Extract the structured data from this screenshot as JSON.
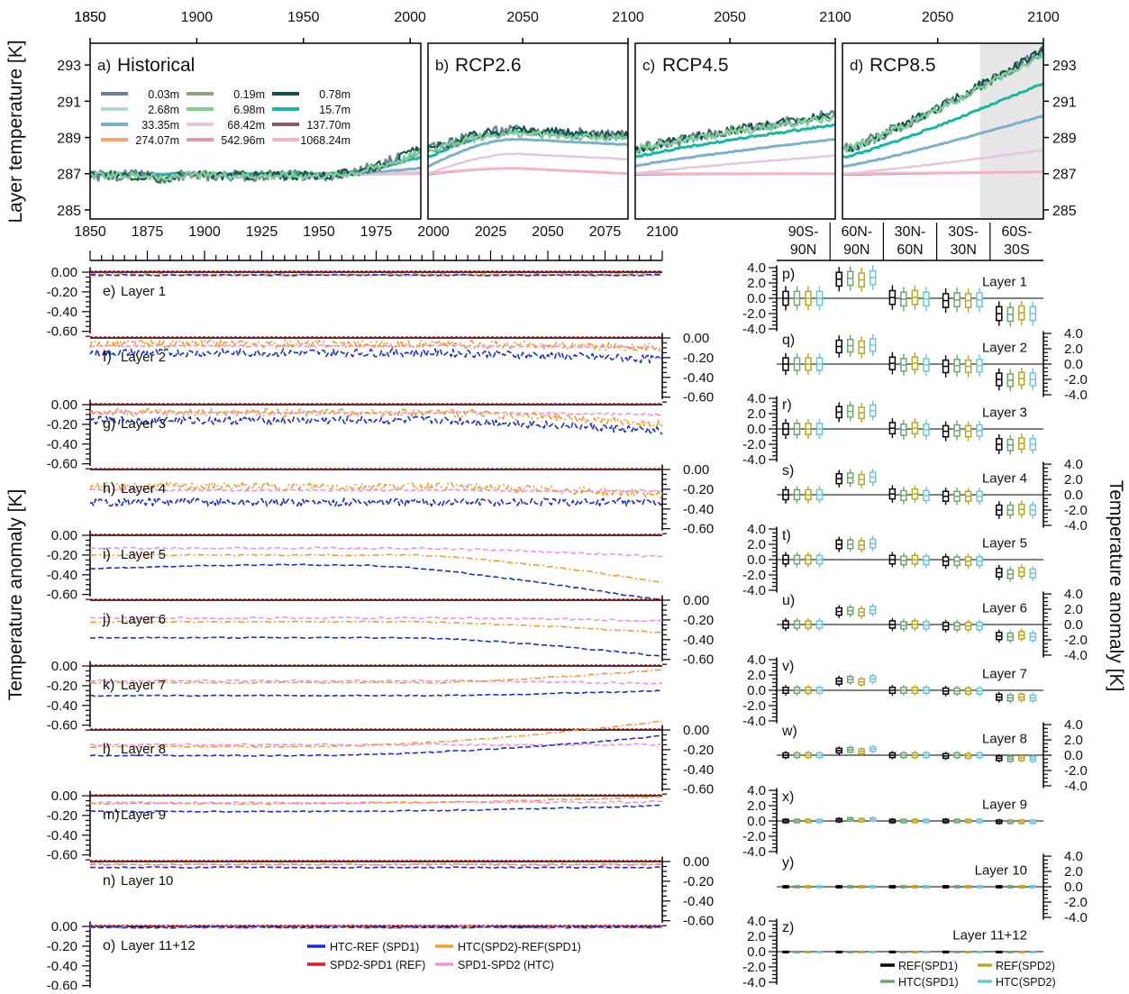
{
  "top_ylabel": "Layer temperature [K]",
  "bottom_ylabel": "Temperature anomaly [K]",
  "right_ylabel": "Temperature anomaly [K]",
  "top_yticks": [
    "285",
    "287",
    "289",
    "291",
    "293"
  ],
  "anom_ticks": [
    "0.00",
    "-0.20",
    "-0.40",
    "-0.60"
  ],
  "box_ticks": [
    "4.0",
    "2.0",
    "0.0",
    "-2.0",
    "-4.0"
  ],
  "chart_data": [
    {
      "type": "line",
      "panels": [
        {
          "label": "a)",
          "title": "Historical",
          "x_ticks": [
            1850,
            1900,
            1950,
            2000
          ],
          "xlim": [
            1850,
            2005
          ]
        },
        {
          "label": "b)",
          "title": "RCP2.6",
          "x_ticks": [
            2050,
            2100
          ],
          "xlim": [
            2005,
            2100
          ]
        },
        {
          "label": "c)",
          "title": "RCP4.5",
          "x_ticks": [
            2050,
            2100
          ],
          "xlim": [
            2005,
            2100
          ]
        },
        {
          "label": "d)",
          "title": "RCP8.5",
          "x_ticks": [
            2050,
            2100
          ],
          "xlim": [
            2005,
            2100
          ],
          "shaded": [
            2070,
            2100
          ]
        }
      ],
      "ylabel": "Layer temperature [K]",
      "ylim": [
        284.5,
        294.2
      ],
      "legend": [
        {
          "name": "0.03m",
          "color": "#6b8494"
        },
        {
          "name": "0.19m",
          "color": "#8f9e7e"
        },
        {
          "name": "0.78m",
          "color": "#0f5247"
        },
        {
          "name": "2.68m",
          "color": "#b4d8c6"
        },
        {
          "name": "6.98m",
          "color": "#7fce95"
        },
        {
          "name": "15.7m",
          "color": "#17b8a0"
        },
        {
          "name": "33.35m",
          "color": "#7ab2cc"
        },
        {
          "name": "68.42m",
          "color": "#e4c6e0"
        },
        {
          "name": "137.70m",
          "color": "#8a5a62"
        },
        {
          "name": "274.07m",
          "color": "#f7a070"
        },
        {
          "name": "542.96m",
          "color": "#e09aa8"
        },
        {
          "name": "1068.24m",
          "color": "#f5b3c0"
        }
      ],
      "end_values": {
        "Historical": {
          "surface": 288.4,
          "15.7m": 287.9,
          "33.35m": 287.3,
          "68.42m": 287.1,
          "deep": 287.0
        },
        "RCP2.6": {
          "surface": 289.1,
          "15.7m": 289.0,
          "33.35m": 288.6,
          "68.42m": 287.8,
          "deep": 287.0
        },
        "RCP4.5": {
          "surface": 290.3,
          "15.7m": 289.7,
          "33.35m": 288.9,
          "68.42m": 288.0,
          "deep": 287.0
        },
        "RCP8.5": {
          "surface": 293.8,
          "15.7m": 292.0,
          "33.35m": 290.2,
          "68.42m": 288.3,
          "deep": 287.1
        }
      }
    },
    {
      "type": "line",
      "x_ticks": [
        1850,
        1875,
        1900,
        1925,
        1950,
        1975,
        2000,
        2025,
        2050,
        2075,
        2100
      ],
      "xlim": [
        1850,
        2100
      ],
      "ylabel": "Temperature anomaly [K]",
      "ylim": [
        -0.65,
        0.05
      ],
      "legend": [
        {
          "name": "HTC-REF (SPD1)",
          "color": "#1a2ed8"
        },
        {
          "name": "HTC(SPD2)-REF(SPD1)",
          "color": "#f59a2c"
        },
        {
          "name": "SPD2-SPD1 (REF)",
          "color": "#e8141e"
        },
        {
          "name": "SPD1-SPD2 (HTC)",
          "color": "#f090e0"
        }
      ],
      "panels": [
        {
          "label": "e)",
          "layer": "Layer 1",
          "series": {
            "HTC-REF (SPD1)": [
              -0.03,
              -0.03
            ],
            "HTC(SPD2)-REF(SPD1)": [
              -0.02,
              -0.02
            ],
            "SPD2-SPD1 (REF)": [
              0.0,
              0.0
            ],
            "SPD1-SPD2 (HTC)": [
              -0.03,
              -0.03
            ]
          }
        },
        {
          "label": "f)",
          "layer": "Layer 2",
          "series": {
            "HTC-REF (SPD1)": [
              -0.15,
              -0.22
            ],
            "HTC(SPD2)-REF(SPD1)": [
              -0.06,
              -0.1
            ],
            "SPD2-SPD1 (REF)": [
              0.0,
              0.0
            ],
            "SPD1-SPD2 (HTC)": [
              -0.08,
              -0.1
            ]
          }
        },
        {
          "label": "g)",
          "layer": "Layer 3",
          "series": {
            "HTC-REF (SPD1)": [
              -0.16,
              -0.27
            ],
            "HTC(SPD2)-REF(SPD1)": [
              -0.08,
              -0.2
            ],
            "SPD2-SPD1 (REF)": [
              0.0,
              0.0
            ],
            "SPD1-SPD2 (HTC)": [
              -0.08,
              -0.1
            ]
          }
        },
        {
          "label": "h)",
          "layer": "Layer 4",
          "series": {
            "HTC-REF (SPD1)": [
              -0.33,
              -0.33
            ],
            "HTC(SPD2)-REF(SPD1)": [
              -0.17,
              -0.25
            ],
            "SPD2-SPD1 (REF)": [
              0.0,
              0.0
            ],
            "SPD1-SPD2 (HTC)": [
              -0.21,
              -0.22
            ]
          }
        },
        {
          "label": "i)",
          "layer": "Layer 5",
          "series": {
            "HTC-REF (SPD1)": [
              -0.34,
              -0.62
            ],
            "HTC(SPD2)-REF(SPD1)": [
              -0.2,
              -0.48
            ],
            "SPD2-SPD1 (REF)": [
              0.0,
              0.0
            ],
            "SPD1-SPD2 (HTC)": [
              -0.13,
              -0.22
            ]
          }
        },
        {
          "label": "j)",
          "layer": "Layer 6",
          "series": {
            "HTC-REF (SPD1)": [
              -0.38,
              -0.57
            ],
            "HTC(SPD2)-REF(SPD1)": [
              -0.22,
              -0.33
            ],
            "SPD2-SPD1 (REF)": [
              0.0,
              0.0
            ],
            "SPD1-SPD2 (HTC)": [
              -0.18,
              -0.21
            ]
          }
        },
        {
          "label": "k)",
          "layer": "Layer 7",
          "series": {
            "HTC-REF (SPD1)": [
              -0.3,
              -0.25
            ],
            "HTC(SPD2)-REF(SPD1)": [
              -0.17,
              -0.04
            ],
            "SPD2-SPD1 (REF)": [
              0.0,
              0.0
            ],
            "SPD1-SPD2 (HTC)": [
              -0.15,
              -0.18
            ]
          }
        },
        {
          "label": "l)",
          "layer": "Layer 8",
          "series": {
            "HTC-REF (SPD1)": [
              -0.26,
              -0.06
            ],
            "HTC(SPD2)-REF(SPD1)": [
              -0.17,
              0.09
            ],
            "SPD2-SPD1 (REF)": [
              0.0,
              0.0
            ],
            "SPD1-SPD2 (HTC)": [
              -0.15,
              -0.15
            ]
          }
        },
        {
          "label": "m)",
          "layer": "Layer 9",
          "series": {
            "HTC-REF (SPD1)": [
              -0.16,
              -0.1
            ],
            "HTC(SPD2)-REF(SPD1)": [
              -0.08,
              -0.01
            ],
            "SPD2-SPD1 (REF)": [
              0.0,
              0.0
            ],
            "SPD1-SPD2 (HTC)": [
              -0.07,
              -0.06
            ]
          }
        },
        {
          "label": "n)",
          "layer": "Layer 10",
          "series": {
            "HTC-REF (SPD1)": [
              -0.06,
              -0.06
            ],
            "HTC(SPD2)-REF(SPD1)": [
              -0.03,
              -0.03
            ],
            "SPD2-SPD1 (REF)": [
              0.0,
              0.0
            ],
            "SPD1-SPD2 (HTC)": [
              -0.03,
              -0.03
            ]
          }
        },
        {
          "label": "o)",
          "layer": "Layer 11+12",
          "series": {
            "HTC-REF (SPD1)": [
              -0.01,
              -0.01
            ],
            "HTC(SPD2)-REF(SPD1)": [
              -0.01,
              -0.01
            ],
            "SPD2-SPD1 (REF)": [
              0.0,
              0.0
            ],
            "SPD1-SPD2 (HTC)": [
              -0.01,
              -0.01
            ]
          }
        }
      ]
    },
    {
      "type": "box",
      "categories": [
        "90S-\n90N",
        "60N-\n90N",
        "30N-\n60N",
        "30S-\n30N",
        "60S-\n30S"
      ],
      "ylim": [
        -4.0,
        4.0
      ],
      "ylabel": "Temperature anomaly [K]",
      "legend": [
        {
          "name": "REF(SPD1)",
          "color": "#000000"
        },
        {
          "name": "REF(SPD2)",
          "color": "#b8a81a"
        },
        {
          "name": "HTC(SPD1)",
          "color": "#6aa870"
        },
        {
          "name": "HTC(SPD2)",
          "color": "#66c8d8"
        }
      ],
      "panels": [
        {
          "label": "p)",
          "layer": "Layer 1",
          "medians": [
            [
              0,
              0,
              0,
              0
            ],
            [
              2.5,
              2.6,
              2.4,
              2.7
            ],
            [
              0.1,
              -0.1,
              0.1,
              -0.1
            ],
            [
              -0.3,
              -0.2,
              -0.3,
              -0.2
            ],
            [
              -2.0,
              -2.1,
              -1.9,
              -2.0
            ]
          ]
        },
        {
          "label": "q)",
          "layer": "Layer 2",
          "medians": [
            [
              0,
              0,
              0,
              0
            ],
            [
              2.3,
              2.4,
              2.2,
              2.5
            ],
            [
              0.1,
              -0.1,
              0.1,
              -0.1
            ],
            [
              -0.3,
              -0.2,
              -0.3,
              -0.2
            ],
            [
              -2.0,
              -2.1,
              -1.9,
              -2.0
            ]
          ]
        },
        {
          "label": "r)",
          "layer": "Layer 3",
          "medians": [
            [
              0,
              0,
              0,
              0
            ],
            [
              2.2,
              2.3,
              2.1,
              2.4
            ],
            [
              0.1,
              -0.1,
              0.1,
              -0.1
            ],
            [
              -0.3,
              -0.2,
              -0.3,
              -0.2
            ],
            [
              -2.0,
              -2.1,
              -1.9,
              -2.0
            ]
          ]
        },
        {
          "label": "s)",
          "layer": "Layer 4",
          "medians": [
            [
              0,
              0,
              0,
              0
            ],
            [
              2.1,
              2.2,
              2.0,
              2.3
            ],
            [
              0.1,
              -0.1,
              0.1,
              -0.1
            ],
            [
              -0.2,
              -0.2,
              -0.2,
              -0.2
            ],
            [
              -2.0,
              -2.0,
              -1.9,
              -2.0
            ]
          ]
        },
        {
          "label": "t)",
          "layer": "Layer 5",
          "medians": [
            [
              0,
              0,
              0,
              0
            ],
            [
              2.0,
              2.0,
              1.9,
              2.1
            ],
            [
              0.0,
              -0.1,
              0.0,
              -0.1
            ],
            [
              -0.2,
              -0.2,
              -0.2,
              -0.2
            ],
            [
              -1.7,
              -1.9,
              -1.6,
              -1.8
            ]
          ]
        },
        {
          "label": "u)",
          "layer": "Layer 6",
          "medians": [
            [
              0,
              0,
              0,
              0
            ],
            [
              1.7,
              1.8,
              1.6,
              1.9
            ],
            [
              0.0,
              -0.1,
              0.0,
              -0.1
            ],
            [
              -0.2,
              -0.2,
              -0.2,
              -0.2
            ],
            [
              -1.5,
              -1.6,
              -1.4,
              -1.6
            ]
          ]
        },
        {
          "label": "v)",
          "layer": "Layer 7",
          "medians": [
            [
              0,
              0,
              0,
              0
            ],
            [
              1.2,
              1.4,
              1.1,
              1.5
            ],
            [
              0.0,
              0.0,
              0.0,
              0.0
            ],
            [
              -0.1,
              -0.1,
              -0.1,
              -0.1
            ],
            [
              -0.9,
              -1.0,
              -0.9,
              -1.0
            ]
          ]
        },
        {
          "label": "w)",
          "layer": "Layer 8",
          "medians": [
            [
              0,
              0,
              0,
              0
            ],
            [
              0.6,
              0.7,
              0.5,
              0.8
            ],
            [
              0.0,
              0.0,
              0.0,
              0.0
            ],
            [
              -0.1,
              0.0,
              -0.1,
              0.0
            ],
            [
              -0.4,
              -0.5,
              -0.4,
              -0.5
            ]
          ]
        },
        {
          "label": "x)",
          "layer": "Layer 9",
          "medians": [
            [
              0,
              0,
              0,
              0
            ],
            [
              0.1,
              0.2,
              0.1,
              0.2
            ],
            [
              0,
              0,
              0,
              0
            ],
            [
              0,
              0,
              0,
              0
            ],
            [
              -0.1,
              -0.1,
              -0.1,
              -0.1
            ]
          ]
        },
        {
          "label": "y)",
          "layer": "Layer 10",
          "medians": [
            [
              0,
              0,
              0,
              0
            ],
            [
              0,
              0,
              0,
              0
            ],
            [
              0,
              0,
              0,
              0
            ],
            [
              0,
              0,
              0,
              0
            ],
            [
              0,
              0,
              0,
              0
            ]
          ]
        },
        {
          "label": "z)",
          "layer": "Layer 11+12",
          "medians": [
            [
              0,
              0,
              0,
              0
            ],
            [
              0,
              0,
              0,
              0
            ],
            [
              0,
              0,
              0,
              0
            ],
            [
              0,
              0,
              0,
              0
            ],
            [
              0,
              0,
              0,
              0
            ]
          ]
        }
      ]
    }
  ]
}
